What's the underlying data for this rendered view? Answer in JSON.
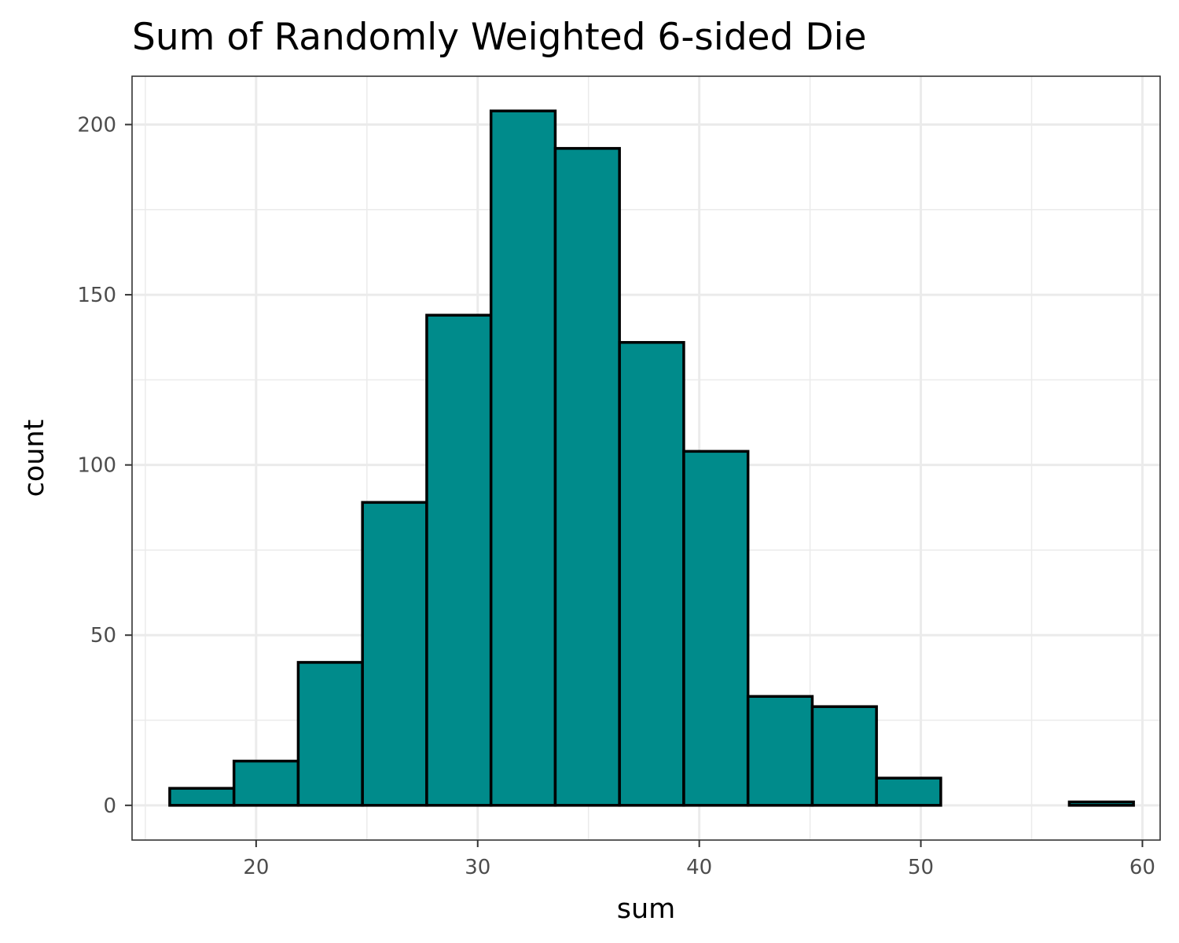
{
  "chart_data": {
    "type": "bar",
    "title": "Sum of Randomly Weighted 6-sided Die",
    "xlabel": "sum",
    "ylabel": "count",
    "bar_fill": "#008b8b",
    "bar_outline": "#000000",
    "grid": true,
    "xlim": [
      14.4,
      60.8
    ],
    "ylim": [
      -10.2,
      214.2
    ],
    "x_ticks": [
      20,
      30,
      40,
      50,
      60
    ],
    "x_tick_labels": [
      "20",
      "30",
      "40",
      "50",
      "60"
    ],
    "y_ticks": [
      0,
      50,
      100,
      150,
      200
    ],
    "y_tick_labels": [
      "0",
      "50",
      "100",
      "150",
      "200"
    ],
    "bins": [
      {
        "x0": 16.1,
        "x1": 19.0,
        "value": 5
      },
      {
        "x0": 19.0,
        "x1": 21.9,
        "value": 13
      },
      {
        "x0": 21.9,
        "x1": 24.8,
        "value": 42
      },
      {
        "x0": 24.8,
        "x1": 27.7,
        "value": 89
      },
      {
        "x0": 27.7,
        "x1": 30.6,
        "value": 144
      },
      {
        "x0": 30.6,
        "x1": 33.5,
        "value": 204
      },
      {
        "x0": 33.5,
        "x1": 36.4,
        "value": 193
      },
      {
        "x0": 36.4,
        "x1": 39.3,
        "value": 136
      },
      {
        "x0": 39.3,
        "x1": 42.2,
        "value": 104
      },
      {
        "x0": 42.2,
        "x1": 45.1,
        "value": 32
      },
      {
        "x0": 45.1,
        "x1": 48.0,
        "value": 29
      },
      {
        "x0": 48.0,
        "x1": 50.9,
        "value": 8
      },
      {
        "x0": 50.9,
        "x1": 53.8,
        "value": 0
      },
      {
        "x0": 53.8,
        "x1": 56.7,
        "value": 0
      },
      {
        "x0": 56.7,
        "x1": 59.6,
        "value": 1
      }
    ]
  }
}
